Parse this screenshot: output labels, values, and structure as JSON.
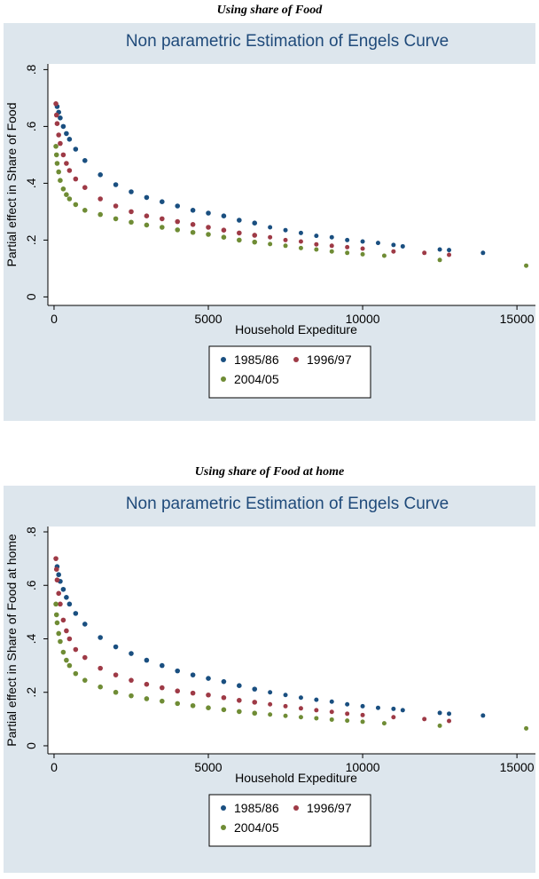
{
  "captions": [
    "Using share of Food",
    "Using share of Food at home"
  ],
  "colors": {
    "1985/86": "#1a4f80",
    "1996/97": "#9e3a46",
    "2004/05": "#6f8c35",
    "frame": "#dde6ed",
    "plot": "#ffffff",
    "title": "#1f4a7a"
  },
  "chart_data": [
    {
      "type": "scatter",
      "title": "Non parametric Estimation of Engels Curve",
      "xlabel": "Household Expediture",
      "ylabel": "Partial effect in Share of Food",
      "xlim": [
        -200,
        15600
      ],
      "ylim": [
        -0.03,
        0.82
      ],
      "xticks": [
        0,
        5000,
        10000,
        15000
      ],
      "yticks": [
        0,
        0.2,
        0.4,
        0.6,
        0.8
      ],
      "ytick_labels": [
        "0",
        ".2",
        ".4",
        ".6",
        ".8"
      ],
      "grid": false,
      "legend_position": "bottom",
      "series": [
        {
          "name": "1985/86",
          "x": [
            100,
            150,
            200,
            300,
            400,
            500,
            700,
            1000,
            1500,
            2000,
            2500,
            3000,
            3500,
            4000,
            4500,
            5000,
            5500,
            6000,
            6500,
            7000,
            7500,
            8000,
            8500,
            9000,
            9500,
            10000,
            10500,
            11000,
            11300,
            12500,
            12800,
            13900
          ],
          "y": [
            0.67,
            0.65,
            0.63,
            0.6,
            0.575,
            0.555,
            0.52,
            0.48,
            0.43,
            0.395,
            0.37,
            0.35,
            0.335,
            0.32,
            0.305,
            0.295,
            0.285,
            0.27,
            0.26,
            0.245,
            0.235,
            0.225,
            0.215,
            0.21,
            0.2,
            0.195,
            0.19,
            0.183,
            0.178,
            0.167,
            0.165,
            0.155
          ]
        },
        {
          "name": "1996/97",
          "x": [
            60,
            80,
            100,
            150,
            200,
            300,
            400,
            500,
            700,
            1000,
            1500,
            2000,
            2500,
            3000,
            3500,
            4000,
            4500,
            5000,
            5500,
            6000,
            6500,
            7000,
            7500,
            8000,
            8500,
            9000,
            9500,
            10000,
            11000,
            12000,
            12800
          ],
          "y": [
            0.68,
            0.64,
            0.61,
            0.57,
            0.54,
            0.5,
            0.47,
            0.445,
            0.415,
            0.385,
            0.345,
            0.32,
            0.3,
            0.285,
            0.275,
            0.265,
            0.255,
            0.245,
            0.235,
            0.225,
            0.217,
            0.21,
            0.2,
            0.195,
            0.185,
            0.18,
            0.175,
            0.17,
            0.16,
            0.155,
            0.148
          ]
        },
        {
          "name": "2004/05",
          "x": [
            60,
            80,
            100,
            150,
            200,
            300,
            400,
            500,
            700,
            1000,
            1500,
            2000,
            2500,
            3000,
            3500,
            4000,
            4500,
            5000,
            5500,
            6000,
            6500,
            7000,
            7500,
            8000,
            8500,
            9000,
            9500,
            10000,
            10700,
            12500,
            15300
          ],
          "y": [
            0.53,
            0.5,
            0.47,
            0.44,
            0.41,
            0.38,
            0.36,
            0.345,
            0.325,
            0.305,
            0.29,
            0.275,
            0.263,
            0.253,
            0.245,
            0.236,
            0.227,
            0.22,
            0.21,
            0.2,
            0.193,
            0.186,
            0.18,
            0.172,
            0.167,
            0.16,
            0.155,
            0.15,
            0.145,
            0.13,
            0.11
          ]
        }
      ]
    },
    {
      "type": "scatter",
      "title": "Non parametric Estimation of Engels Curve",
      "xlabel": "Household Expediture",
      "ylabel": "Partial effect in Share of Food at home",
      "xlim": [
        -200,
        15600
      ],
      "ylim": [
        -0.03,
        0.82
      ],
      "xticks": [
        0,
        5000,
        10000,
        15000
      ],
      "yticks": [
        0,
        0.2,
        0.4,
        0.6,
        0.8
      ],
      "ytick_labels": [
        "0",
        ".2",
        ".4",
        ".6",
        ".8"
      ],
      "grid": false,
      "legend_position": "bottom",
      "series": [
        {
          "name": "1985/86",
          "x": [
            100,
            150,
            200,
            300,
            400,
            500,
            700,
            1000,
            1500,
            2000,
            2500,
            3000,
            3500,
            4000,
            4500,
            5000,
            5500,
            6000,
            6500,
            7000,
            7500,
            8000,
            8500,
            9000,
            9500,
            10000,
            10500,
            11000,
            11300,
            12500,
            12800,
            13900
          ],
          "y": [
            0.67,
            0.64,
            0.615,
            0.585,
            0.555,
            0.53,
            0.495,
            0.455,
            0.405,
            0.37,
            0.345,
            0.32,
            0.3,
            0.28,
            0.265,
            0.252,
            0.24,
            0.225,
            0.212,
            0.2,
            0.19,
            0.18,
            0.172,
            0.165,
            0.155,
            0.148,
            0.142,
            0.138,
            0.133,
            0.123,
            0.12,
            0.113
          ]
        },
        {
          "name": "1996/97",
          "x": [
            60,
            80,
            100,
            150,
            200,
            300,
            400,
            500,
            700,
            1000,
            1500,
            2000,
            2500,
            3000,
            3500,
            4000,
            4500,
            5000,
            5500,
            6000,
            6500,
            7000,
            7500,
            8000,
            8500,
            9000,
            9500,
            10000,
            11000,
            12000,
            12800
          ],
          "y": [
            0.7,
            0.66,
            0.62,
            0.57,
            0.53,
            0.47,
            0.43,
            0.4,
            0.36,
            0.33,
            0.29,
            0.265,
            0.245,
            0.23,
            0.217,
            0.205,
            0.197,
            0.19,
            0.18,
            0.17,
            0.163,
            0.155,
            0.148,
            0.14,
            0.133,
            0.127,
            0.12,
            0.115,
            0.107,
            0.1,
            0.093
          ]
        },
        {
          "name": "2004/05",
          "x": [
            60,
            80,
            100,
            150,
            200,
            300,
            400,
            500,
            700,
            1000,
            1500,
            2000,
            2500,
            3000,
            3500,
            4000,
            4500,
            5000,
            5500,
            6000,
            6500,
            7000,
            7500,
            8000,
            8500,
            9000,
            9500,
            10000,
            10700,
            12500,
            15300
          ],
          "y": [
            0.53,
            0.49,
            0.46,
            0.42,
            0.39,
            0.35,
            0.32,
            0.3,
            0.27,
            0.245,
            0.22,
            0.2,
            0.187,
            0.176,
            0.167,
            0.158,
            0.15,
            0.142,
            0.135,
            0.128,
            0.122,
            0.117,
            0.112,
            0.107,
            0.103,
            0.098,
            0.094,
            0.09,
            0.084,
            0.075,
            0.065
          ]
        }
      ]
    }
  ]
}
